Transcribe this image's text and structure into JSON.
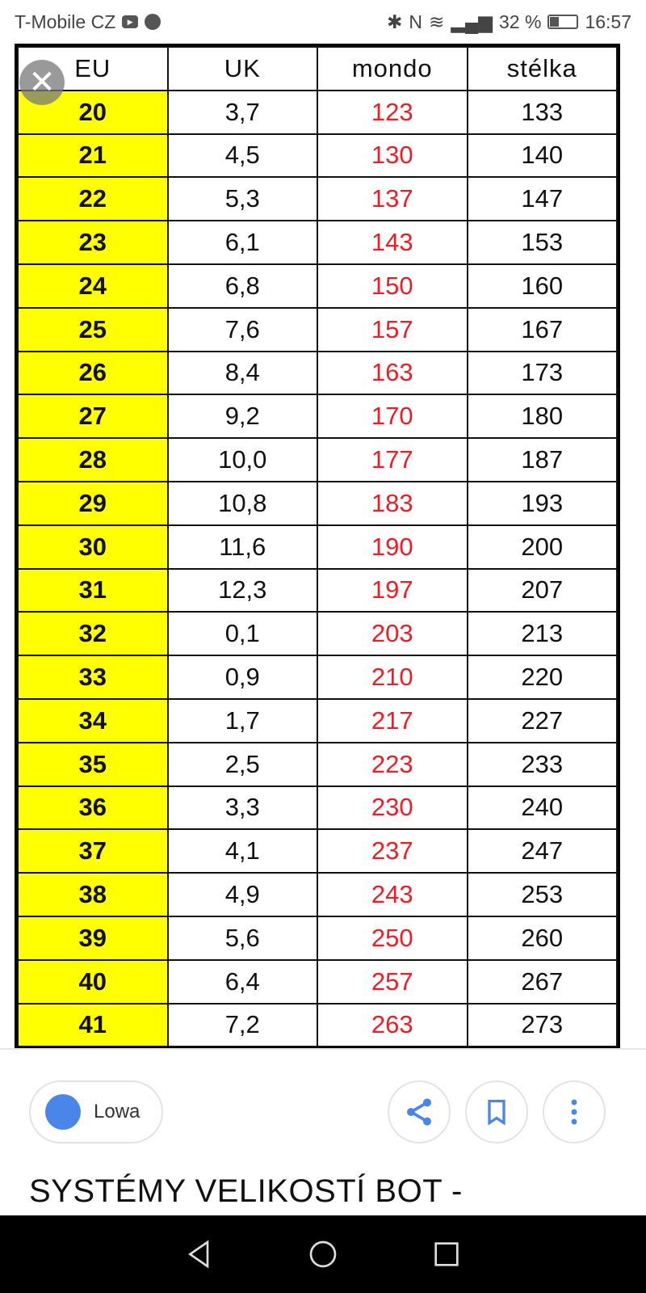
{
  "status": {
    "carrier": "T-Mobile CZ",
    "battery": "32 %",
    "time": "16:57"
  },
  "table": {
    "headers": [
      "EU",
      "UK",
      "mondo",
      "stélka"
    ],
    "rows": [
      [
        "20",
        "3,7",
        "123",
        "133"
      ],
      [
        "21",
        "4,5",
        "130",
        "140"
      ],
      [
        "22",
        "5,3",
        "137",
        "147"
      ],
      [
        "23",
        "6,1",
        "143",
        "153"
      ],
      [
        "24",
        "6,8",
        "150",
        "160"
      ],
      [
        "25",
        "7,6",
        "157",
        "167"
      ],
      [
        "26",
        "8,4",
        "163",
        "173"
      ],
      [
        "27",
        "9,2",
        "170",
        "180"
      ],
      [
        "28",
        "10,0",
        "177",
        "187"
      ],
      [
        "29",
        "10,8",
        "183",
        "193"
      ],
      [
        "30",
        "11,6",
        "190",
        "200"
      ],
      [
        "31",
        "12,3",
        "197",
        "207"
      ],
      [
        "32",
        "0,1",
        "203",
        "213"
      ],
      [
        "33",
        "0,9",
        "210",
        "220"
      ],
      [
        "34",
        "1,7",
        "217",
        "227"
      ],
      [
        "35",
        "2,5",
        "223",
        "233"
      ],
      [
        "36",
        "3,3",
        "230",
        "240"
      ],
      [
        "37",
        "4,1",
        "237",
        "247"
      ],
      [
        "38",
        "4,9",
        "243",
        "253"
      ],
      [
        "39",
        "5,6",
        "250",
        "260"
      ],
      [
        "40",
        "6,4",
        "257",
        "267"
      ],
      [
        "41",
        "7,2",
        "263",
        "273"
      ]
    ],
    "colors": {
      "eu_bg": "#ffff00",
      "mondo_text": "#ee1c24"
    }
  },
  "source": {
    "label": "Lowa",
    "icon": "globe-icon"
  },
  "actions": {
    "share": "share-icon",
    "save": "bookmark-icon",
    "more": "more-vert-icon",
    "accent": "#4a86e8"
  },
  "result_title": "SYSTÉMY VELIKOSTÍ BOT -"
}
